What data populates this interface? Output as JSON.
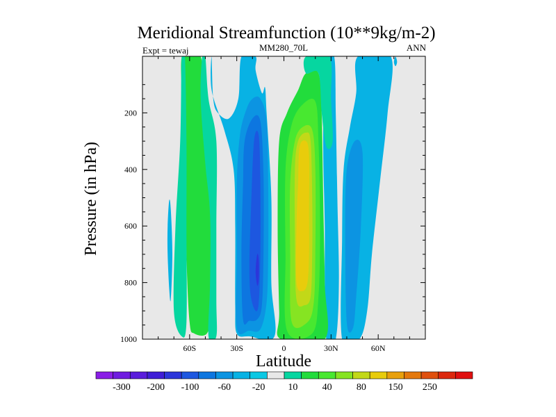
{
  "chart_data": {
    "type": "heatmap",
    "title": "Meridional Streamfunction (10**9kg/m-2)",
    "left_label": "Expt = tewaj",
    "center_label": "MM280_70L",
    "right_label": "ANN",
    "xlabel": "Latitude",
    "ylabel": "Pressure (in hPa)",
    "xlim": [
      -90,
      90
    ],
    "ylim": [
      1000,
      0
    ],
    "x_ticks": [
      {
        "value": -60,
        "label": "60S"
      },
      {
        "value": -30,
        "label": "30S"
      },
      {
        "value": 0,
        "label": "0"
      },
      {
        "value": 30,
        "label": "30N"
      },
      {
        "value": 60,
        "label": "60N"
      }
    ],
    "y_ticks": [
      {
        "value": 200,
        "label": "200"
      },
      {
        "value": 400,
        "label": "400"
      },
      {
        "value": 600,
        "label": "600"
      },
      {
        "value": 800,
        "label": "800"
      },
      {
        "value": 1000,
        "label": "1000"
      }
    ],
    "background_color": "#e8e8e8",
    "colorbar": {
      "colors": [
        "#8a1ee6",
        "#6f1ce0",
        "#5a1cdc",
        "#3f1ed6",
        "#2c36da",
        "#1d57e0",
        "#0d76e0",
        "#0c94e2",
        "#08b2e4",
        "#0ac8e4",
        "#e8e8e8",
        "#06d6a0",
        "#22dc3c",
        "#48e830",
        "#86e422",
        "#c2d818",
        "#e8cc0c",
        "#e8a00c",
        "#e4780c",
        "#e0500e",
        "#dc280e",
        "#e01010"
      ],
      "labels": [
        "-300",
        "-200",
        "-100",
        "-60",
        "-20",
        "10",
        "40",
        "80",
        "150",
        "250"
      ],
      "label_slots": [
        1,
        3,
        5,
        7,
        9,
        11,
        13,
        15,
        17,
        19
      ]
    },
    "contours": [
      {
        "name": "nh-outer-cyan",
        "level": "-20 to -10",
        "color": "#08b2e4",
        "points": [
          [
            27,
            1000
          ],
          [
            26,
            810
          ],
          [
            26,
            600
          ],
          [
            25,
            300
          ],
          [
            26,
            1
          ],
          [
            32,
            1
          ],
          [
            33,
            200
          ],
          [
            34,
            500
          ],
          [
            35,
            800
          ],
          [
            33,
            1000
          ]
        ]
      },
      {
        "name": "nh-far-cyan",
        "level": "-20 to -10",
        "color": "#08b2e4",
        "points": [
          [
            37,
            1000
          ],
          [
            37,
            650
          ],
          [
            38,
            400
          ],
          [
            42,
            250
          ],
          [
            46,
            130
          ],
          [
            47,
            1
          ],
          [
            68,
            1
          ],
          [
            66,
            200
          ],
          [
            61,
            450
          ],
          [
            56,
            700
          ],
          [
            53,
            900
          ],
          [
            48,
            1000
          ]
        ]
      },
      {
        "name": "nh-far-blue",
        "level": "-60 to -20",
        "color": "#0c94e2",
        "points": [
          [
            40,
            940
          ],
          [
            39,
            620
          ],
          [
            40,
            400
          ],
          [
            45,
            300
          ],
          [
            50,
            340
          ],
          [
            49,
            600
          ],
          [
            46,
            850
          ],
          [
            44,
            960
          ]
        ]
      },
      {
        "name": "nh-pole-cyan",
        "level": "-20 to -10",
        "color": "#08b2e4",
        "points": [
          [
            70,
            20
          ],
          [
            71,
            1
          ],
          [
            72,
            20
          ],
          [
            71,
            35
          ]
        ]
      },
      {
        "name": "sh-far-cyan",
        "level": "-20 to -10",
        "color": "#08b2e4",
        "points": [
          [
            -73,
            820
          ],
          [
            -74,
            700
          ],
          [
            -74,
            600
          ],
          [
            -73,
            510
          ],
          [
            -72,
            540
          ],
          [
            -71,
            700
          ],
          [
            -72,
            860
          ]
        ]
      },
      {
        "name": "sh-green-band",
        "level": "10 to 40",
        "color": "#22dc3c",
        "points": [
          [
            -57,
            980
          ],
          [
            -60,
            940
          ],
          [
            -62,
            700
          ],
          [
            -63,
            300
          ],
          [
            -65,
            1
          ],
          [
            -53,
            1
          ],
          [
            -52,
            150
          ],
          [
            -48,
            300
          ],
          [
            -46,
            500
          ],
          [
            -45,
            700
          ],
          [
            -46,
            900
          ],
          [
            -49,
            980
          ]
        ]
      },
      {
        "name": "sh-teal-1",
        "level": "10",
        "color": "#06d6a0",
        "points": [
          [
            -65,
            1
          ],
          [
            -66,
            300
          ],
          [
            -69,
            600
          ],
          [
            -70,
            900
          ],
          [
            -65,
            990
          ],
          [
            -62,
            940
          ],
          [
            -62,
            600
          ],
          [
            -62,
            300
          ],
          [
            -63,
            1
          ]
        ]
      },
      {
        "name": "sh-teal-2",
        "level": "10",
        "color": "#06d6a0",
        "points": [
          [
            -52,
            1
          ],
          [
            -53,
            150
          ],
          [
            -50,
            380
          ],
          [
            -47,
            560
          ],
          [
            -47,
            800
          ],
          [
            -48,
            990
          ],
          [
            -43,
            990
          ],
          [
            -43,
            860
          ],
          [
            -43,
            600
          ],
          [
            -43,
            300
          ],
          [
            -48,
            150
          ],
          [
            -50,
            1
          ]
        ]
      },
      {
        "name": "sh-cyan-outer",
        "level": "-20 to -10",
        "color": "#08b2e4",
        "points": [
          [
            -46,
            1
          ],
          [
            -45,
            150
          ],
          [
            -42,
            200
          ],
          [
            -35,
            220
          ],
          [
            -29,
            150
          ],
          [
            -27,
            1
          ],
          [
            -18,
            1
          ],
          [
            -18,
            50
          ],
          [
            -14,
            130
          ],
          [
            -12,
            110
          ],
          [
            -11,
            200
          ],
          [
            -8,
            500
          ],
          [
            -8,
            800
          ],
          [
            -6,
            990
          ],
          [
            -22,
            990
          ],
          [
            -30,
            980
          ],
          [
            -31,
            880
          ],
          [
            -31,
            600
          ],
          [
            -32,
            400
          ],
          [
            -38,
            260
          ],
          [
            -46,
            120
          ]
        ]
      },
      {
        "name": "sh-blue-1",
        "level": "-60 to -20",
        "color": "#0c94e2",
        "points": [
          [
            -30,
            960
          ],
          [
            -30,
            700
          ],
          [
            -30,
            450
          ],
          [
            -28,
            280
          ],
          [
            -24,
            190
          ],
          [
            -20,
            150
          ],
          [
            -15,
            150
          ],
          [
            -11,
            230
          ],
          [
            -10,
            450
          ],
          [
            -10,
            700
          ],
          [
            -11,
            870
          ],
          [
            -15,
            965
          ],
          [
            -22,
            970
          ]
        ]
      },
      {
        "name": "sh-blue-2",
        "level": "-100 to -60",
        "color": "#0d76e0",
        "points": [
          [
            -26,
            930
          ],
          [
            -27,
            700
          ],
          [
            -26,
            450
          ],
          [
            -25,
            300
          ],
          [
            -20,
            220
          ],
          [
            -15,
            230
          ],
          [
            -13,
            420
          ],
          [
            -13,
            700
          ],
          [
            -14,
            880
          ],
          [
            -17,
            930
          ],
          [
            -22,
            935
          ]
        ]
      },
      {
        "name": "sh-blue-3",
        "level": "-200 to -100",
        "color": "#1d57e0",
        "points": [
          [
            -18,
            900
          ],
          [
            -21,
            850
          ],
          [
            -22,
            750
          ],
          [
            -21,
            550
          ],
          [
            -19,
            300
          ],
          [
            -16,
            280
          ],
          [
            -15,
            450
          ],
          [
            -15,
            700
          ],
          [
            -16,
            870
          ]
        ]
      },
      {
        "name": "sh-blue-core",
        "level": "-300 to -200",
        "color": "#2c36da",
        "points": [
          [
            -17,
            810
          ],
          [
            -18,
            760
          ],
          [
            -17,
            700
          ],
          [
            -16,
            720
          ],
          [
            -16,
            790
          ]
        ]
      },
      {
        "name": "nh-green-outer",
        "level": "10 to 40",
        "color": "#22dc3c",
        "points": [
          [
            -2,
            1000
          ],
          [
            -3,
            900
          ],
          [
            -4,
            600
          ],
          [
            -3,
            300
          ],
          [
            2,
            200
          ],
          [
            9,
            120
          ],
          [
            14,
            60
          ],
          [
            22,
            60
          ],
          [
            24,
            200
          ],
          [
            25,
            500
          ],
          [
            26,
            800
          ],
          [
            26,
            1000
          ]
        ]
      },
      {
        "name": "nh-teal-strip",
        "level": "10",
        "color": "#06d6a0",
        "points": [
          [
            14,
            1
          ],
          [
            14,
            60
          ],
          [
            22,
            60
          ],
          [
            24,
            200
          ],
          [
            27,
            320
          ],
          [
            31,
            300
          ],
          [
            30,
            150
          ],
          [
            29,
            1
          ]
        ]
      },
      {
        "name": "nh-green-mid",
        "level": "40 to 80",
        "color": "#48e830",
        "points": [
          [
            2,
            970
          ],
          [
            1,
            700
          ],
          [
            1,
            400
          ],
          [
            5,
            240
          ],
          [
            12,
            170
          ],
          [
            20,
            160
          ],
          [
            22,
            300
          ],
          [
            23,
            600
          ],
          [
            22,
            850
          ],
          [
            18,
            980
          ]
        ]
      },
      {
        "name": "nh-lime",
        "level": "80 to 150",
        "color": "#86e422",
        "points": [
          [
            5,
            940
          ],
          [
            4,
            700
          ],
          [
            4,
            450
          ],
          [
            7,
            300
          ],
          [
            12,
            250
          ],
          [
            18,
            260
          ],
          [
            20,
            400
          ],
          [
            20,
            700
          ],
          [
            19,
            870
          ],
          [
            15,
            940
          ]
        ]
      },
      {
        "name": "nh-yellow-green",
        "level": "150 to 250",
        "color": "#c2d818",
        "points": [
          [
            8,
            860
          ],
          [
            7,
            650
          ],
          [
            7,
            400
          ],
          [
            9,
            300
          ],
          [
            14,
            270
          ],
          [
            17,
            300
          ],
          [
            18,
            500
          ],
          [
            18,
            700
          ],
          [
            17,
            850
          ],
          [
            13,
            880
          ]
        ]
      },
      {
        "name": "nh-yellow-core",
        "level": "250+",
        "color": "#e8cc0c",
        "points": [
          [
            8,
            800
          ],
          [
            8,
            600
          ],
          [
            9,
            450
          ],
          [
            10,
            320
          ],
          [
            14,
            300
          ],
          [
            16,
            350
          ],
          [
            16,
            550
          ],
          [
            16,
            700
          ],
          [
            15,
            800
          ],
          [
            12,
            830
          ]
        ]
      }
    ]
  }
}
